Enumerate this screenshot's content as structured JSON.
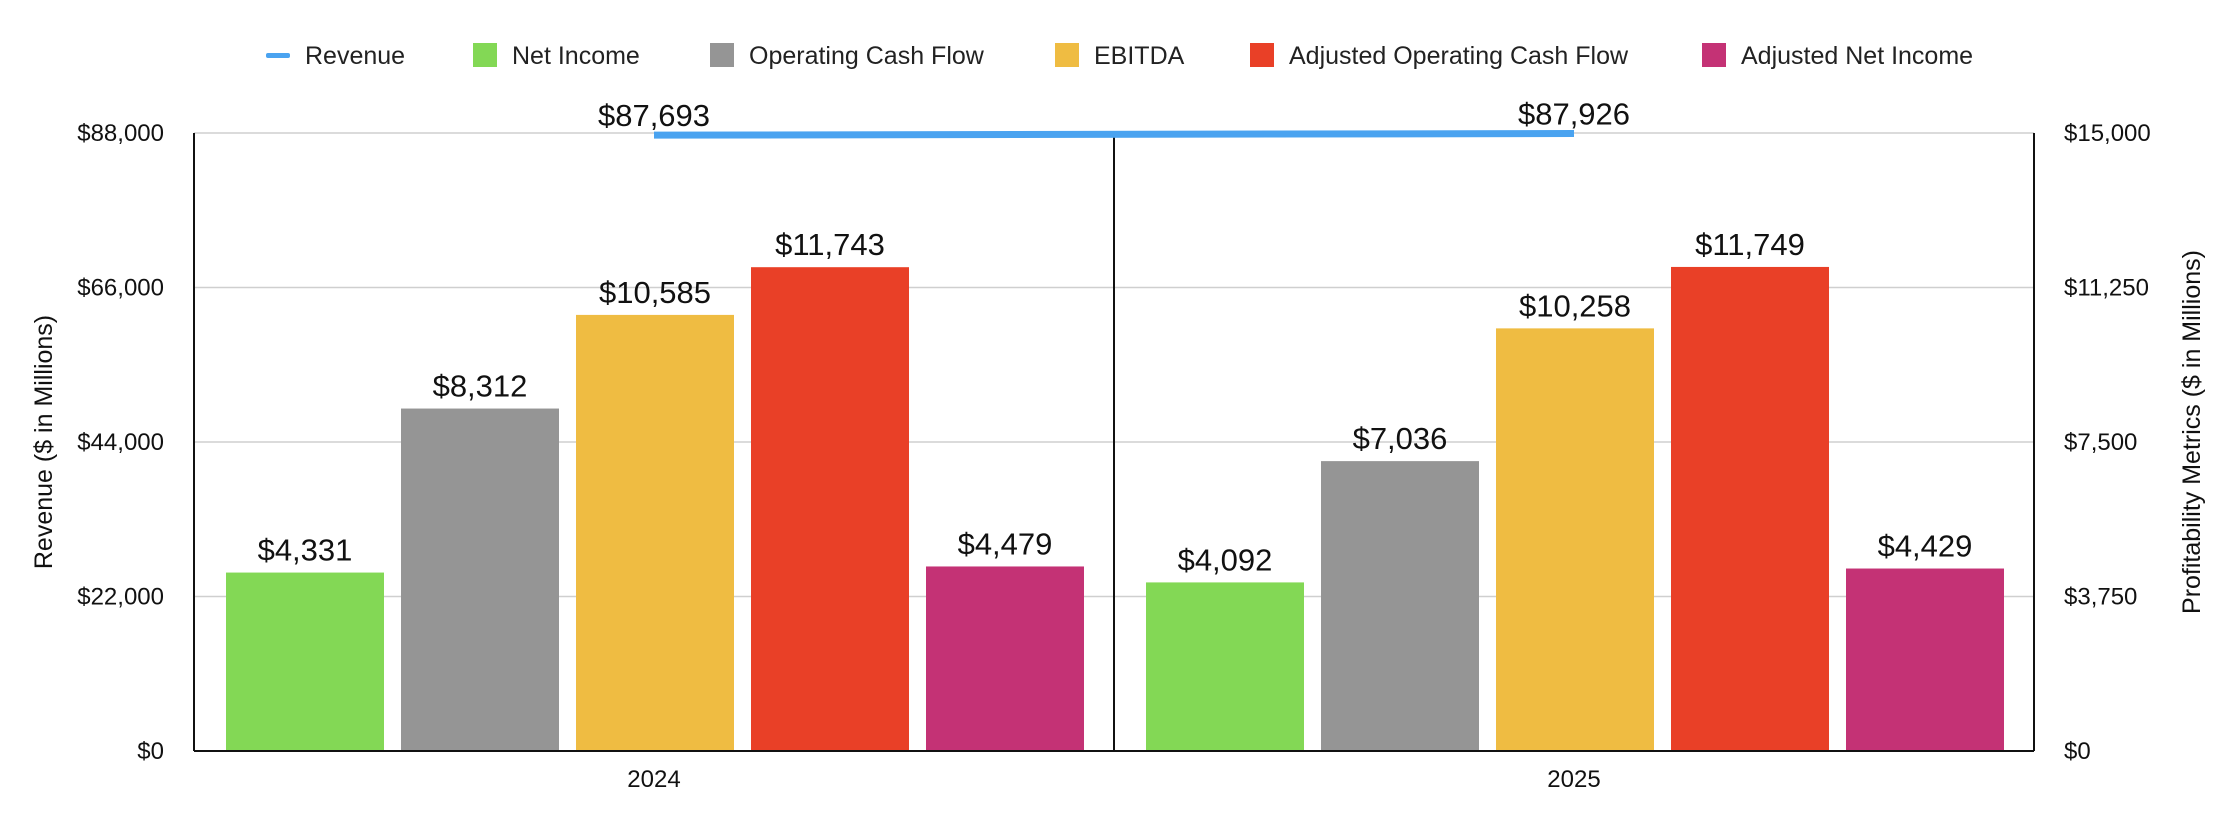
{
  "chart_data": {
    "type": "bar",
    "categories": [
      "2024",
      "2025"
    ],
    "series": [
      {
        "name": "Revenue",
        "kind": "line",
        "axis": "left",
        "color": "#4aa3f0",
        "values": [
          87693,
          87926
        ],
        "labels": [
          "$87,693",
          "$87,926"
        ]
      },
      {
        "name": "Net Income",
        "kind": "bar",
        "axis": "right",
        "color": "#83d855",
        "values": [
          4331,
          4092
        ],
        "labels": [
          "$4,331",
          "$4,092"
        ]
      },
      {
        "name": "Operating Cash Flow",
        "kind": "bar",
        "axis": "right",
        "color": "#959595",
        "values": [
          8312,
          7036
        ],
        "labels": [
          "$8,312",
          "$7,036"
        ]
      },
      {
        "name": "EBITDA",
        "kind": "bar",
        "axis": "right",
        "color": "#efbc42",
        "values": [
          10585,
          10258
        ],
        "labels": [
          "$10,585",
          "$10,258"
        ]
      },
      {
        "name": "Adjusted Operating Cash Flow",
        "kind": "bar",
        "axis": "right",
        "color": "#e94027",
        "values": [
          11743,
          11749
        ],
        "labels": [
          "$11,743",
          "$11,749"
        ]
      },
      {
        "name": "Adjusted Net Income",
        "kind": "bar",
        "axis": "right",
        "color": "#c43275",
        "values": [
          4479,
          4429
        ],
        "labels": [
          "$4,479",
          "$4,429"
        ]
      }
    ],
    "left_axis": {
      "label": "Revenue ($ in Millions)",
      "ylim": [
        0,
        88000
      ],
      "ticks": [
        0,
        22000,
        44000,
        66000,
        88000
      ],
      "tick_labels": [
        "$0",
        "$22,000",
        "$44,000",
        "$66,000",
        "$88,000"
      ]
    },
    "right_axis": {
      "label": "Profitability Metrics ($ in Millions)",
      "ylim": [
        0,
        15000
      ],
      "ticks": [
        0,
        3750,
        7500,
        11250,
        15000
      ],
      "tick_labels": [
        "$0",
        "$3,750",
        "$7,500",
        "$11,250",
        "$15,000"
      ]
    },
    "grid": true,
    "legend_position": "top"
  }
}
